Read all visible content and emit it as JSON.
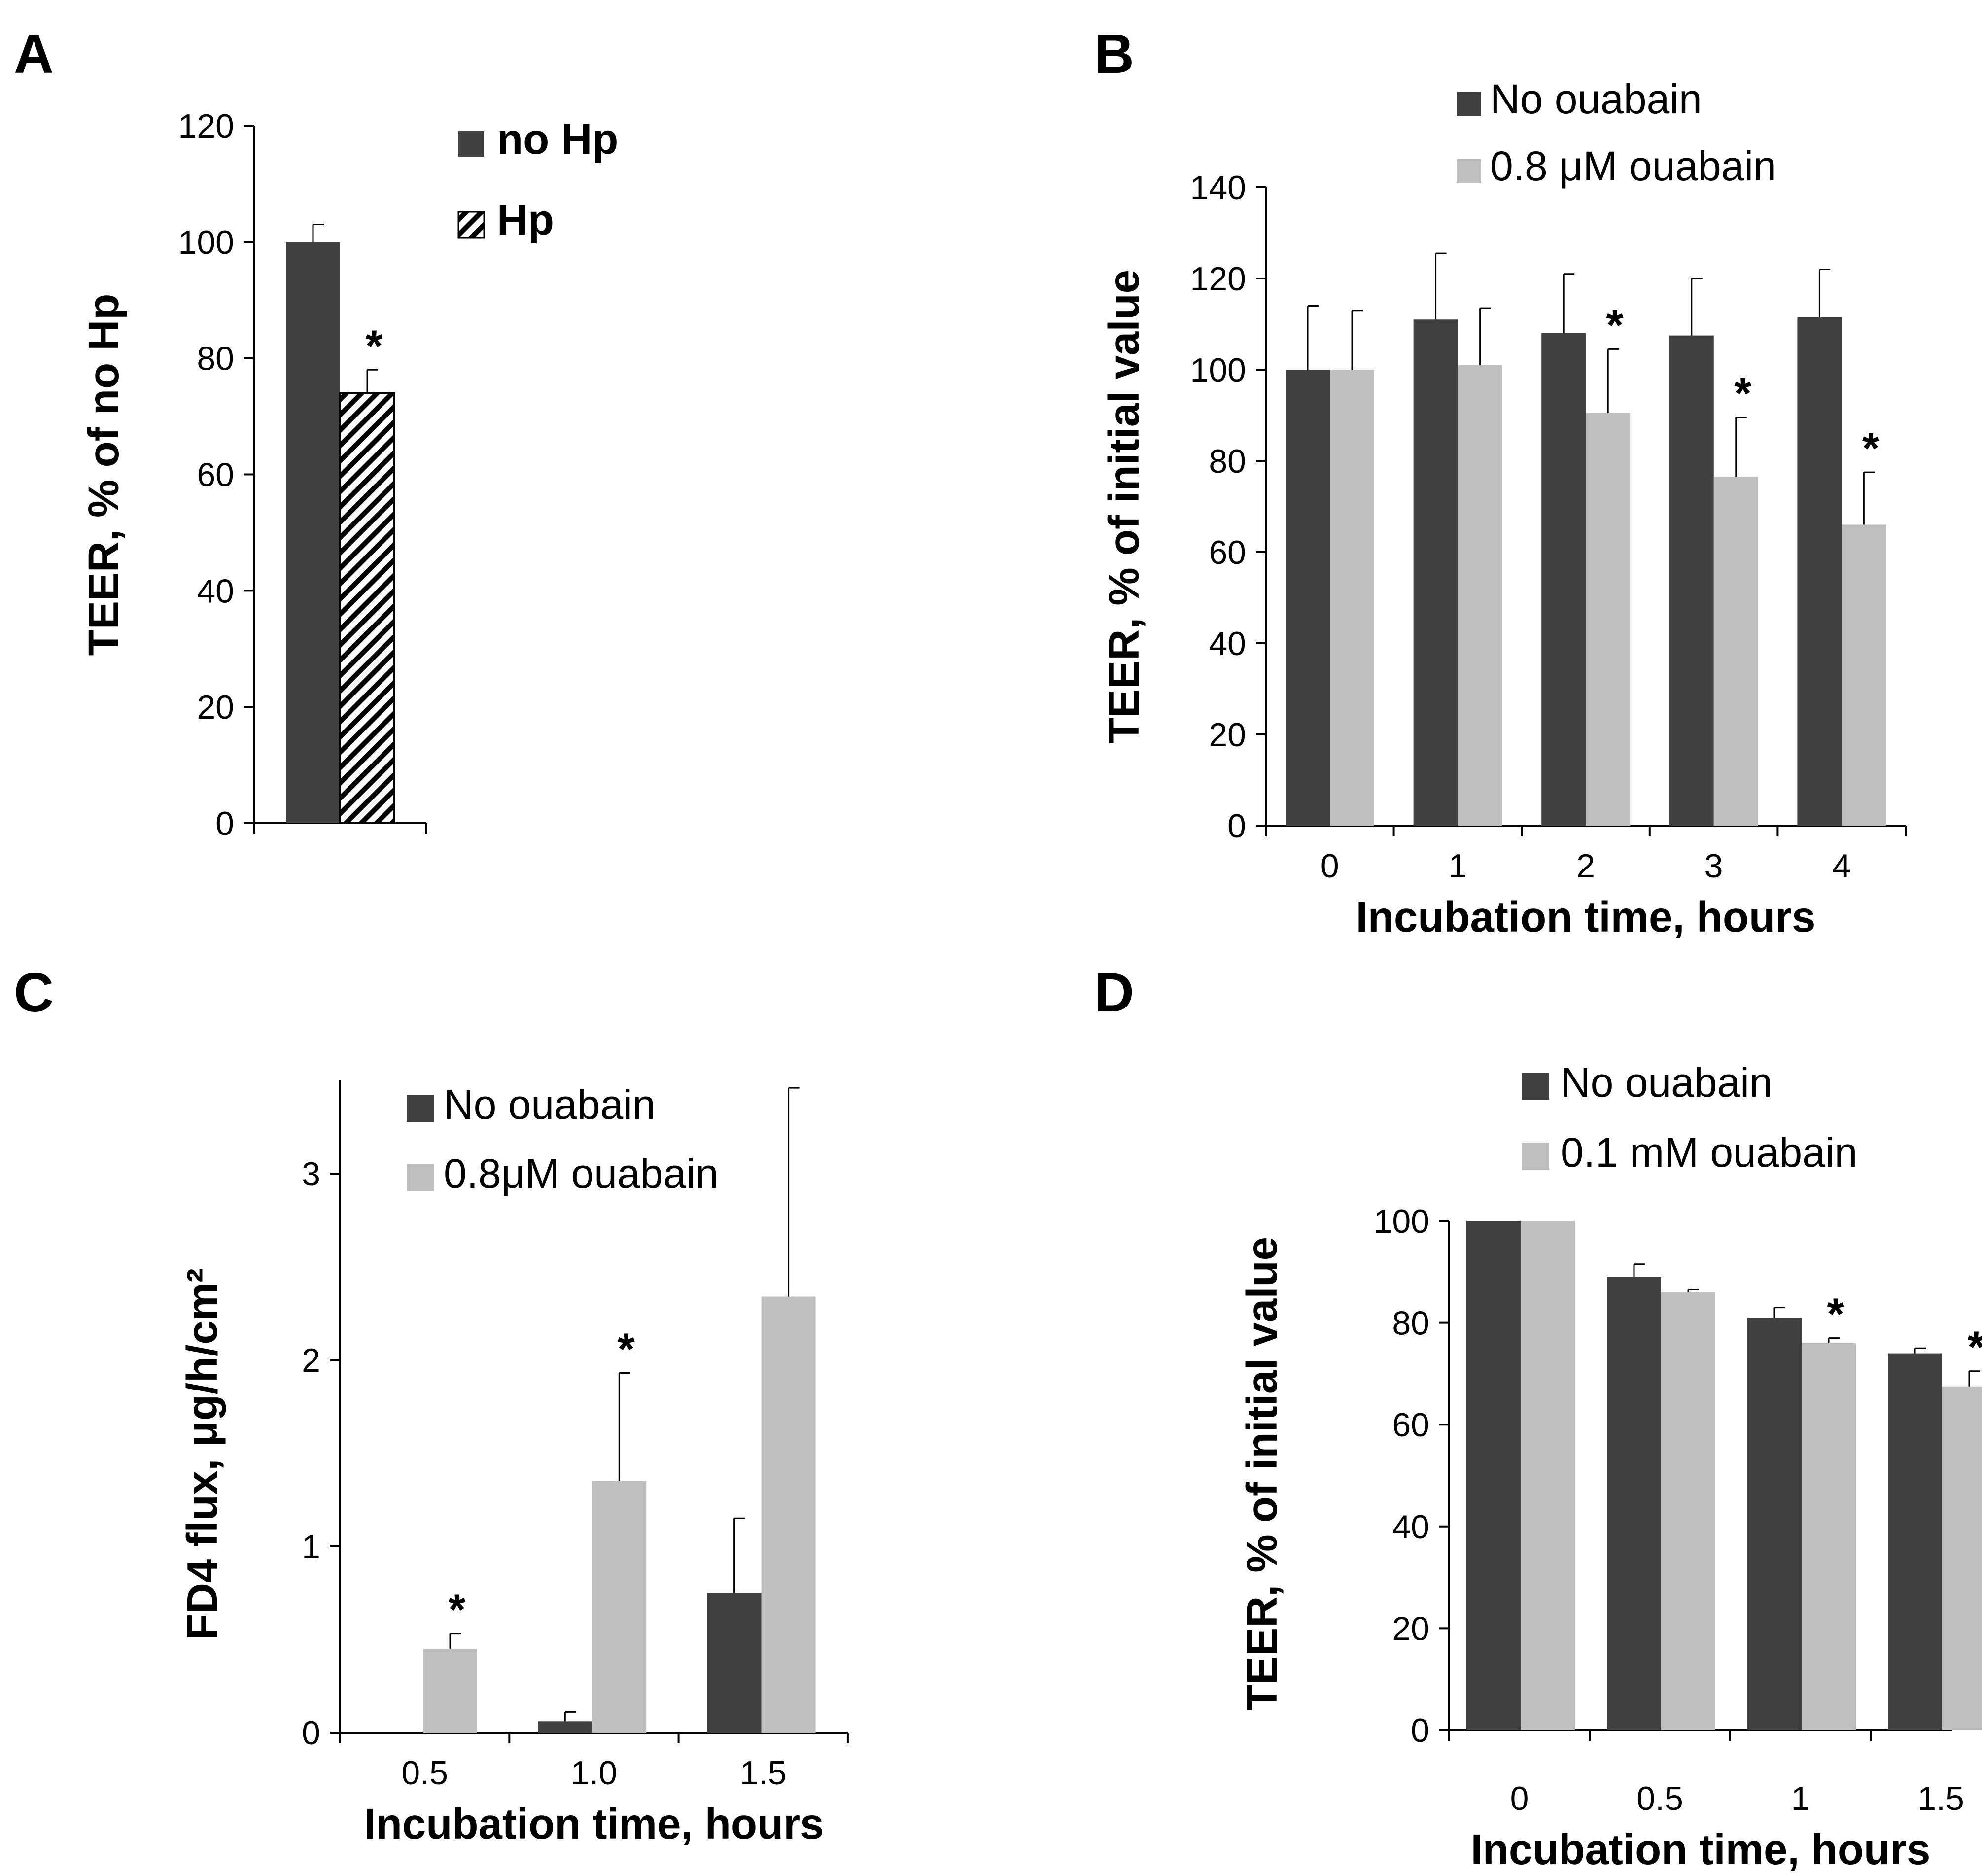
{
  "colors": {
    "dark": "#404040",
    "light": "#bfbfbf",
    "axis": "#000000",
    "hatch_bg": "#ffffff"
  },
  "chart_data": [
    {
      "panel": "A",
      "type": "bar",
      "ylabel": "TEER, % of no Hp",
      "xlabel": "",
      "ylim": [
        0,
        120
      ],
      "yticks": [
        "0",
        "20",
        "40",
        "60",
        "80",
        "100",
        "120"
      ],
      "categories": [
        ""
      ],
      "series": [
        {
          "name": "no Hp",
          "values": [
            100
          ],
          "errors": [
            3
          ],
          "fill": "dark",
          "sig": [
            false
          ]
        },
        {
          "name": "Hp",
          "values": [
            74
          ],
          "errors": [
            4
          ],
          "fill": "hatch",
          "sig": [
            true
          ]
        }
      ],
      "legend_position": "top-right",
      "significance_marker": "*"
    },
    {
      "panel": "B",
      "type": "bar",
      "ylabel": "TEER, % of initial value",
      "xlabel": "Incubation time, hours",
      "ylim": [
        0,
        140
      ],
      "yticks": [
        "0",
        "20",
        "40",
        "60",
        "80",
        "100",
        "120",
        "140"
      ],
      "categories": [
        "0",
        "1",
        "2",
        "3",
        "4"
      ],
      "series": [
        {
          "name": "No ouabain",
          "values": [
            100,
            111,
            108,
            107.5,
            111.5
          ],
          "errors": [
            14,
            14.5,
            13,
            12.5,
            10.5
          ],
          "fill": "dark",
          "sig": [
            false,
            false,
            false,
            false,
            false
          ]
        },
        {
          "name": "0.8 μM ouabain",
          "values": [
            100,
            101,
            90.5,
            76.5,
            66
          ],
          "errors": [
            13,
            12.5,
            14,
            13,
            11.5
          ],
          "fill": "light",
          "sig": [
            false,
            false,
            true,
            true,
            true
          ]
        }
      ],
      "legend_position": "top-left",
      "significance_marker": "*"
    },
    {
      "panel": "C",
      "type": "bar",
      "ylabel": "FD4 flux, μg/h/cm²",
      "xlabel": "Incubation time, hours",
      "ylim": [
        0,
        3.5
      ],
      "yticks": [
        "0",
        "1",
        "2",
        "3"
      ],
      "categories": [
        "0.5",
        "1.0",
        "1.5"
      ],
      "series": [
        {
          "name": "No ouabain",
          "values": [
            0,
            0.06,
            0.75
          ],
          "errors": [
            0,
            0.05,
            0.4
          ],
          "fill": "dark",
          "sig": [
            false,
            false,
            false
          ]
        },
        {
          "name": "0.8μM ouabain",
          "values": [
            0.45,
            1.35,
            2.34
          ],
          "errors": [
            0.08,
            0.58,
            1.12
          ],
          "fill": "light",
          "sig": [
            true,
            true,
            false
          ]
        }
      ],
      "legend_position": "top-right",
      "significance_marker": "*"
    },
    {
      "panel": "D",
      "type": "bar",
      "ylabel": "TEER, % of initial value",
      "xlabel": "Incubation time, hours",
      "ylim": [
        0,
        100
      ],
      "yticks": [
        "0",
        "20",
        "40",
        "60",
        "80",
        "100"
      ],
      "categories": [
        "0",
        "0.5",
        "1",
        "1.5"
      ],
      "series": [
        {
          "name": "No ouabain",
          "values": [
            100,
            89,
            81,
            74
          ],
          "errors": [
            0,
            2.5,
            2,
            1
          ],
          "fill": "dark",
          "sig": [
            false,
            false,
            false,
            false
          ]
        },
        {
          "name": "0.1 mM ouabain",
          "values": [
            100,
            86,
            76,
            67.5
          ],
          "errors": [
            0,
            0.5,
            1,
            3
          ],
          "fill": "light",
          "sig": [
            false,
            false,
            true,
            true
          ]
        }
      ],
      "legend_position": "top-right",
      "significance_marker": "*"
    }
  ]
}
